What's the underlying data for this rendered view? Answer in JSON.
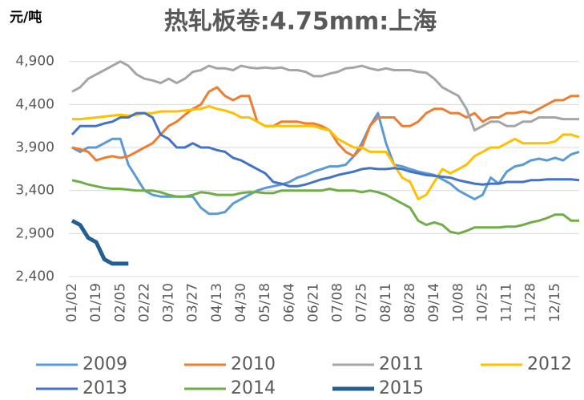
{
  "chart_data": {
    "type": "line",
    "title": "热轧板卷:4.75mm:上海",
    "y_label": "元/吨",
    "categories": [
      "01/02",
      null,
      null,
      "01/19",
      null,
      null,
      "02/05",
      null,
      null,
      "02/22",
      null,
      null,
      "03/10",
      null,
      null,
      "03/27",
      null,
      null,
      "04/13",
      null,
      null,
      "04/30",
      null,
      null,
      "05/18",
      null,
      null,
      "06/04",
      null,
      null,
      "06/21",
      null,
      null,
      "07/08",
      null,
      null,
      "07/25",
      null,
      null,
      "08/11",
      null,
      null,
      "08/28",
      null,
      null,
      "09/14",
      null,
      null,
      "10/08",
      null,
      null,
      "10/25",
      null,
      null,
      "11/11",
      null,
      null,
      "11/28",
      null,
      null,
      "12/15",
      null,
      null,
      null
    ],
    "ylim": [
      2400,
      5000
    ],
    "yticks": [
      {
        "value": 2400,
        "label": "2,400"
      },
      {
        "value": 2900,
        "label": "2,900"
      },
      {
        "value": 3400,
        "label": "3,400"
      },
      {
        "value": 3900,
        "label": "3,900"
      },
      {
        "value": 4400,
        "label": "4,400"
      },
      {
        "value": 4900,
        "label": "4,900"
      }
    ],
    "grid": true,
    "legend": "bottom",
    "series": [
      {
        "name": "2009",
        "color": "#5b9bd5",
        "values": [
          3900,
          3850,
          3900,
          3900,
          3950,
          4000,
          4000,
          3700,
          3550,
          3400,
          3350,
          3330,
          3330,
          3330,
          3330,
          3330,
          3200,
          3130,
          3130,
          3150,
          3250,
          3300,
          3350,
          3400,
          3430,
          3450,
          3470,
          3500,
          3550,
          3580,
          3620,
          3650,
          3680,
          3680,
          3700,
          3800,
          3950,
          4150,
          4300,
          3950,
          3700,
          3680,
          3650,
          3620,
          3600,
          3580,
          3530,
          3480,
          3400,
          3350,
          3300,
          3350,
          3550,
          3480,
          3620,
          3680,
          3700,
          3750,
          3770,
          3750,
          3780,
          3750,
          3820,
          3850
        ]
      },
      {
        "name": "2010",
        "color": "#ed7d31",
        "values": [
          3900,
          3880,
          3850,
          3750,
          3780,
          3800,
          3780,
          3800,
          3850,
          3900,
          3950,
          4050,
          4150,
          4200,
          4280,
          4350,
          4400,
          4550,
          4600,
          4500,
          4450,
          4500,
          4500,
          4200,
          4150,
          4150,
          4200,
          4200,
          4200,
          4180,
          4180,
          4150,
          4100,
          3950,
          3850,
          3800,
          3900,
          4150,
          4250,
          4250,
          4250,
          4150,
          4150,
          4200,
          4300,
          4350,
          4350,
          4300,
          4300,
          4250,
          4300,
          4200,
          4250,
          4250,
          4300,
          4300,
          4320,
          4300,
          4350,
          4400,
          4450,
          4450,
          4500,
          4500
        ]
      },
      {
        "name": "2011",
        "color": "#a5a5a5",
        "values": [
          4550,
          4600,
          4700,
          4750,
          4800,
          4850,
          4900,
          4850,
          4750,
          4700,
          4680,
          4650,
          4700,
          4650,
          4700,
          4780,
          4800,
          4850,
          4820,
          4820,
          4800,
          4850,
          4830,
          4820,
          4830,
          4820,
          4830,
          4800,
          4800,
          4780,
          4730,
          4730,
          4760,
          4780,
          4820,
          4830,
          4850,
          4820,
          4800,
          4820,
          4800,
          4800,
          4800,
          4780,
          4770,
          4700,
          4600,
          4550,
          4500,
          4350,
          4100,
          4150,
          4200,
          4200,
          4150,
          4150,
          4200,
          4200,
          4250,
          4250,
          4250,
          4230,
          4230,
          4230
        ]
      },
      {
        "name": "2012",
        "color": "#ffc000",
        "values": [
          4230,
          4230,
          4240,
          4250,
          4260,
          4270,
          4280,
          4270,
          4280,
          4300,
          4300,
          4320,
          4320,
          4320,
          4330,
          4340,
          4350,
          4380,
          4350,
          4330,
          4300,
          4250,
          4250,
          4200,
          4150,
          4150,
          4150,
          4150,
          4150,
          4150,
          4150,
          4120,
          4100,
          4000,
          3950,
          3900,
          3900,
          3850,
          3850,
          3850,
          3700,
          3550,
          3500,
          3300,
          3350,
          3500,
          3650,
          3600,
          3650,
          3700,
          3800,
          3850,
          3900,
          3900,
          3950,
          4000,
          3950,
          3950,
          3950,
          3950,
          3970,
          4050,
          4050,
          4020
        ]
      },
      {
        "name": "2013",
        "color": "#4472c4",
        "values": [
          4050,
          4150,
          4150,
          4150,
          4180,
          4200,
          4250,
          4250,
          4300,
          4300,
          4250,
          4050,
          4000,
          3900,
          3900,
          3950,
          3900,
          3900,
          3870,
          3850,
          3780,
          3750,
          3700,
          3650,
          3600,
          3500,
          3480,
          3450,
          3450,
          3470,
          3500,
          3530,
          3550,
          3580,
          3600,
          3620,
          3650,
          3660,
          3650,
          3650,
          3660,
          3650,
          3620,
          3600,
          3580,
          3570,
          3560,
          3550,
          3520,
          3500,
          3480,
          3470,
          3480,
          3480,
          3500,
          3500,
          3500,
          3520,
          3520,
          3530,
          3530,
          3530,
          3530,
          3520
        ]
      },
      {
        "name": "2014",
        "color": "#70ad47",
        "values": [
          3520,
          3500,
          3470,
          3450,
          3430,
          3420,
          3420,
          3410,
          3400,
          3400,
          3400,
          3380,
          3350,
          3330,
          3330,
          3350,
          3380,
          3370,
          3350,
          3350,
          3350,
          3370,
          3380,
          3380,
          3370,
          3370,
          3400,
          3400,
          3400,
          3400,
          3400,
          3400,
          3420,
          3400,
          3400,
          3400,
          3380,
          3400,
          3380,
          3350,
          3300,
          3250,
          3200,
          3050,
          3000,
          3030,
          3000,
          2920,
          2900,
          2930,
          2970,
          2970,
          2970,
          2970,
          2980,
          2980,
          3000,
          3030,
          3050,
          3080,
          3120,
          3120,
          3050,
          3050
        ]
      },
      {
        "name": "2015",
        "color": "#255e91",
        "values": [
          3050,
          3000,
          2850,
          2800,
          2600,
          2550,
          2550,
          2550,
          null,
          null,
          null,
          null,
          null,
          null,
          null,
          null,
          null,
          null,
          null,
          null,
          null,
          null,
          null,
          null,
          null,
          null,
          null,
          null,
          null,
          null,
          null,
          null,
          null,
          null,
          null,
          null,
          null,
          null,
          null,
          null,
          null,
          null,
          null,
          null,
          null,
          null,
          null,
          null,
          null,
          null,
          null,
          null,
          null,
          null,
          null,
          null,
          null,
          null,
          null,
          null,
          null,
          null,
          null,
          null
        ]
      }
    ]
  }
}
